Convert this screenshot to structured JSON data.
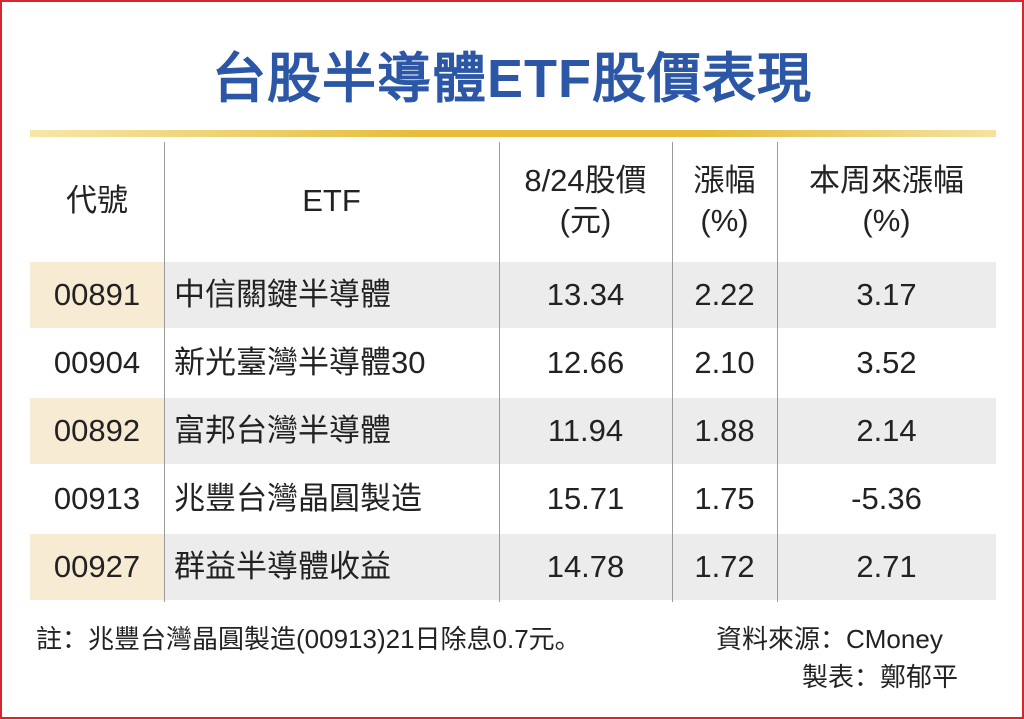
{
  "header": {
    "title": "台股半導體ETF股價表現"
  },
  "table": {
    "columns": [
      [
        "代號"
      ],
      [
        "ETF"
      ],
      [
        "8/24股價",
        "(元)"
      ],
      [
        "漲幅",
        "(%)"
      ],
      [
        "本周來漲幅",
        "(%)"
      ]
    ],
    "rows": [
      [
        "00891",
        "中信關鍵半導體",
        "13.34",
        "2.22",
        "3.17"
      ],
      [
        "00904",
        "新光臺灣半導體30",
        "12.66",
        "2.10",
        "3.52"
      ],
      [
        "00892",
        "富邦台灣半導體",
        "11.94",
        "1.88",
        "2.14"
      ],
      [
        "00913",
        "兆豐台灣晶圓製造",
        "15.71",
        "1.75",
        "-5.36"
      ],
      [
        "00927",
        "群益半導體收益",
        "14.78",
        "1.72",
        "2.71"
      ]
    ]
  },
  "footer": {
    "note": "註：兆豐台灣晶圓製造(00913)21日除息0.7元。",
    "source": "資料來源：CMoney",
    "credit": "製表：鄭郁平"
  }
}
